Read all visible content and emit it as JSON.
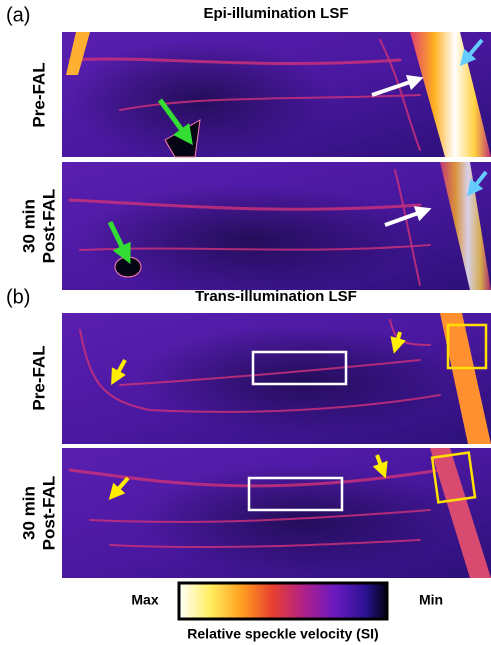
{
  "panels": [
    {
      "label": "(a)",
      "title": "Epi-illumination LSF",
      "rows": [
        {
          "label_lines": [
            "Pre-FAL"
          ]
        },
        {
          "label_lines": [
            "30 min",
            "Post-FAL"
          ]
        }
      ]
    },
    {
      "label": "(b)",
      "title": "Trans-illumination LSF",
      "rows": [
        {
          "label_lines": [
            "Pre-FAL"
          ]
        },
        {
          "label_lines": [
            "30 min",
            "Post-FAL"
          ]
        }
      ]
    }
  ],
  "colorbar": {
    "max_label": "Max",
    "min_label": "Min",
    "caption": "Relative speckle velocity (SI)"
  }
}
